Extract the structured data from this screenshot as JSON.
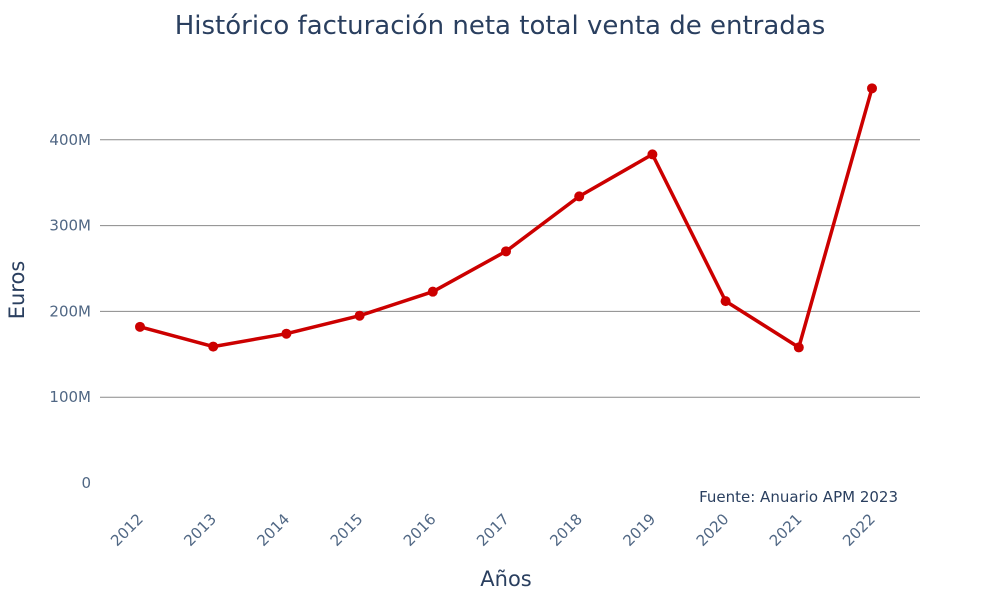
{
  "chart_data": {
    "type": "line",
    "title": "Histórico facturación neta total venta de entradas",
    "xlabel": "Años",
    "ylabel": "Euros",
    "categories": [
      "2012",
      "2013",
      "2014",
      "2015",
      "2016",
      "2017",
      "2018",
      "2019",
      "2020",
      "2021",
      "2022"
    ],
    "series": [
      {
        "values": [
          182000000,
          159000000,
          174000000,
          195000000,
          223000000,
          270000000,
          334000000,
          383000000,
          212000000,
          158000000,
          460000000
        ],
        "color": "#cc0000"
      }
    ],
    "ylim": [
      0,
      480000000
    ],
    "yticks": [
      0,
      100000000,
      200000000,
      300000000,
      400000000
    ],
    "ytick_labels": [
      "0",
      "100M",
      "200M",
      "300M",
      "400M"
    ],
    "grid": true,
    "legend": "none",
    "annotation": "Fuente: Anuario APM 2023"
  }
}
